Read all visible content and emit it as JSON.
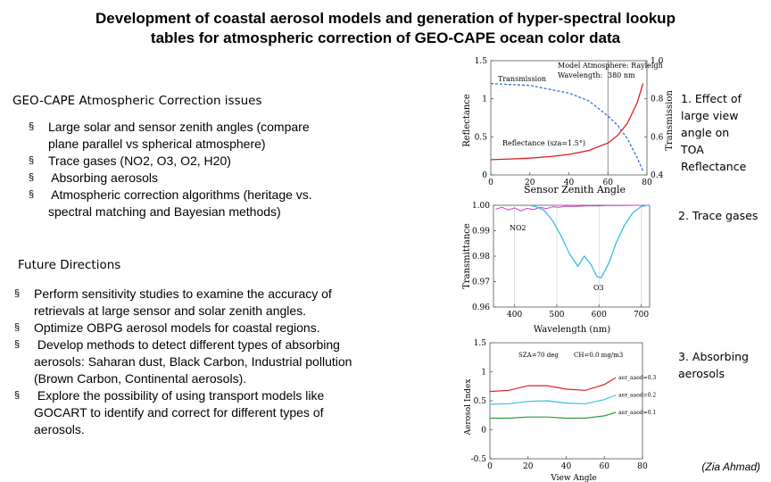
{
  "title": {
    "line1": "Development of coastal aerosol models and generation of hyper-spectral lookup",
    "line2": "tables for atmospheric correction of GEO-CAPE ocean color data"
  },
  "issues": {
    "heading": "GEO-CAPE Atmospheric Correction issues",
    "bullet_marker": "§",
    "items": [
      [
        "Large solar and sensor zenith angles (compare",
        "plane parallel vs spherical atmosphere)"
      ],
      [
        "Trace gases (NO2, O3, O2, H20)"
      ],
      [
        " Absorbing aerosols"
      ],
      [
        " Atmospheric correction algorithms (heritage vs.",
        "spectral matching and Bayesian methods)"
      ]
    ]
  },
  "future": {
    "heading": "Future Directions",
    "items": [
      [
        "Perform sensitivity studies to examine the accuracy of",
        "retrievals at large sensor and solar zenith angles."
      ],
      [
        "Optimize OBPG aerosol models for coastal regions."
      ],
      [
        " Develop methods to detect different types of absorbing",
        "aerosols: Saharan dust, Black Carbon, Industrial pollution",
        "(Brown Carbon, Continental aerosols)."
      ],
      [
        " Explore the possibility of using transport models like",
        "GOCART to identify and correct for different types of",
        "aerosols."
      ]
    ]
  },
  "captions": {
    "c1": [
      "1. Effect of",
      "large view",
      "angle on",
      "TOA",
      "Reflectance"
    ],
    "c2": "2. Trace gases",
    "c3": [
      "3. Absorbing",
      "aerosols"
    ]
  },
  "author": "(Zia Ahmad)",
  "colors": {
    "red": "#e02020",
    "blue": "#3a6fd0",
    "cyan": "#35bfe8",
    "magenta": "#d03cc8",
    "green": "#2e9a3a"
  },
  "chart_data": [
    {
      "type": "line",
      "xlabel": "Sensor Zenith Angle",
      "ylabel": "Reflectance",
      "y2label": "Transmission",
      "xlim": [
        0,
        80
      ],
      "ylim": [
        0,
        1.5
      ],
      "y2lim": [
        0.4,
        1.0
      ],
      "xticks": [
        "0",
        "20",
        "40",
        "60",
        "80"
      ],
      "yticks": [
        "0",
        "0.5",
        "1",
        "1.5"
      ],
      "y2ticks": [
        "0.4",
        "0.6",
        "0.8",
        "1.0"
      ],
      "annotations": {
        "legend_title": "Model Atmosphere: Rayleigh",
        "legend_wave_label": "Wavelength:",
        "legend_wave_value": "380 nm",
        "transmission_label": "Transmission",
        "reflectance_label": "Reflectance (sza=1.5°)"
      },
      "series": [
        {
          "name": "Reflectance",
          "axis": "left",
          "x": [
            0,
            10,
            20,
            30,
            40,
            50,
            60,
            65,
            70,
            75,
            78
          ],
          "y": [
            0.2,
            0.21,
            0.22,
            0.24,
            0.27,
            0.32,
            0.42,
            0.52,
            0.68,
            0.95,
            1.2
          ]
        },
        {
          "name": "Transmission",
          "axis": "right",
          "x": [
            0,
            10,
            20,
            30,
            40,
            50,
            60,
            65,
            70,
            75,
            78
          ],
          "y": [
            0.88,
            0.875,
            0.87,
            0.85,
            0.83,
            0.79,
            0.71,
            0.66,
            0.59,
            0.49,
            0.42
          ]
        }
      ]
    },
    {
      "type": "line",
      "xlabel": "Wavelength (nm)",
      "ylabel": "Transmittance",
      "xlim": [
        350,
        720
      ],
      "ylim": [
        0.96,
        1.0
      ],
      "xticks": [
        "400",
        "500",
        "600",
        "700"
      ],
      "yticks": [
        "0.96",
        "0.97",
        "0.98",
        "0.99",
        "1.00"
      ],
      "annotations": {
        "no2_label": "NO2",
        "o3_label": "O3"
      },
      "series": [
        {
          "name": "NO2",
          "x": [
            355,
            370,
            385,
            400,
            415,
            430,
            445,
            460,
            475,
            490,
            505,
            520,
            540,
            560,
            580,
            600,
            620,
            650,
            680,
            700,
            715
          ],
          "y": [
            0.9985,
            0.9992,
            0.9982,
            0.999,
            0.9978,
            0.9988,
            0.9983,
            0.9992,
            0.9987,
            0.9994,
            0.9992,
            0.9996,
            0.9995,
            0.9997,
            0.9998,
            0.9998,
            0.9999,
            0.9999,
            1.0,
            1.0,
            1.0
          ]
        },
        {
          "name": "O3",
          "x": [
            435,
            450,
            470,
            490,
            510,
            530,
            550,
            565,
            580,
            595,
            605,
            615,
            625,
            640,
            660,
            680,
            700,
            715
          ],
          "y": [
            1.0,
            0.9995,
            0.998,
            0.994,
            0.988,
            0.981,
            0.976,
            0.98,
            0.977,
            0.972,
            0.9715,
            0.9745,
            0.978,
            0.985,
            0.992,
            0.997,
            0.9995,
            1.0
          ]
        }
      ]
    },
    {
      "type": "line",
      "xlabel": "View Angle",
      "ylabel": "Aerosol Index",
      "xlim": [
        0,
        80
      ],
      "ylim": [
        -0.5,
        1.5
      ],
      "xticks": [
        "0",
        "20",
        "40",
        "60",
        "80"
      ],
      "yticks": [
        "-0.5",
        "0",
        "0.5",
        "1",
        "1.5"
      ],
      "annotations": {
        "header_left": "SZA=70 deg",
        "header_right": "CH=0.0 mg/m3"
      },
      "series": [
        {
          "name": "aer_aaod=0.3",
          "x": [
            0,
            10,
            20,
            30,
            40,
            50,
            60,
            66
          ],
          "y": [
            0.66,
            0.68,
            0.76,
            0.76,
            0.7,
            0.68,
            0.78,
            0.9
          ]
        },
        {
          "name": "aer_aaod=0.2",
          "x": [
            0,
            10,
            20,
            30,
            40,
            50,
            60,
            66
          ],
          "y": [
            0.44,
            0.45,
            0.49,
            0.5,
            0.46,
            0.45,
            0.52,
            0.6
          ]
        },
        {
          "name": "aer_aaod=0.1",
          "x": [
            0,
            10,
            20,
            30,
            40,
            50,
            60,
            66
          ],
          "y": [
            0.2,
            0.2,
            0.22,
            0.22,
            0.2,
            0.2,
            0.24,
            0.3
          ]
        }
      ]
    }
  ]
}
